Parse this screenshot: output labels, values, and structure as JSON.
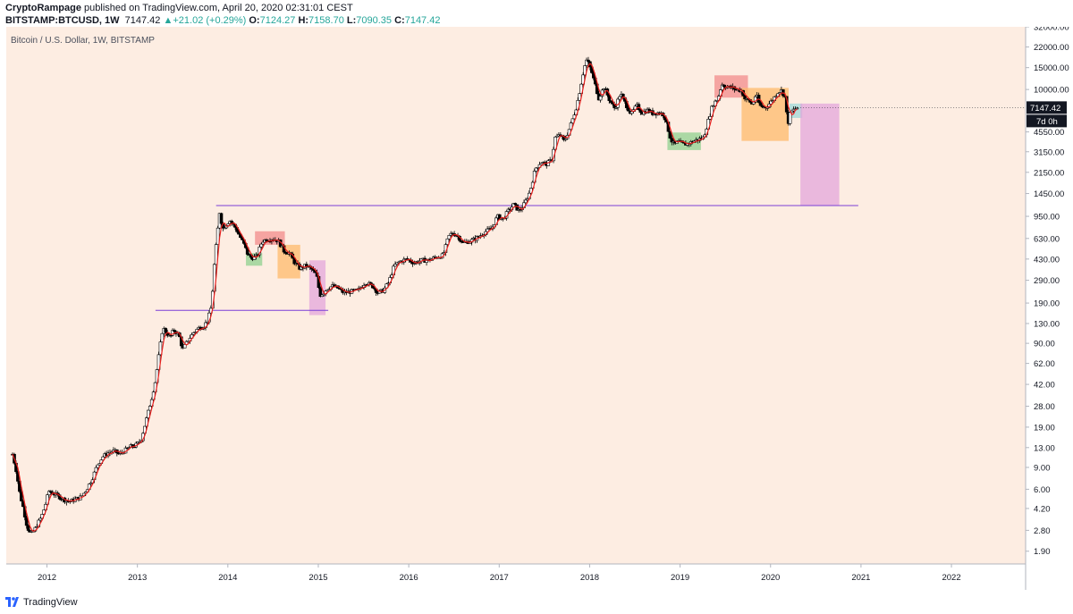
{
  "header": {
    "publisher": "CryptoRampage",
    "published_text": "published on TradingView.com, April 20, 2020 02:31:01 CEST",
    "symbol": "BITSTAMP:BTCUSD, 1W",
    "last": "7147.42",
    "change_arrow": "▲",
    "change": "+21.02 (+0.29%)",
    "o_label": "O:",
    "o_value": "7124.27",
    "h_label": "H:",
    "h_value": "7158.70",
    "l_label": "L:",
    "l_value": "7090.35",
    "c_label": "C:",
    "c_value": "7147.42"
  },
  "footer": {
    "brand": "TradingView",
    "logo_icon": "tradingview-logo-icon"
  },
  "colors": {
    "background": "#fdede2",
    "axis_bg": "#ffffff",
    "candle_up": "#ffffff",
    "candle_down": "#000000",
    "wick": "#000000",
    "ma_line": "#e8201e",
    "level_line": "#7b3fd6",
    "box_red": "#f28b8b",
    "box_orange": "#fdb96b",
    "box_green": "#8fd08f",
    "box_teal": "#9fd8d8",
    "box_pink": "#e3a6db",
    "price_label_bg": "#131722"
  },
  "chart_data": {
    "type": "candlestick",
    "title": "Bitcoin / U.S. Dollar, 1W, BITSTAMP",
    "y_scale": "log",
    "ylim": [
      1.5,
      32000
    ],
    "xlim": [
      2011.55,
      2022.82
    ],
    "y_ticks": [
      "32000.00",
      "22000.00",
      "15000.00",
      "10000.00",
      "7147.42",
      "4550.00",
      "3150.00",
      "2150.00",
      "1450.00",
      "950.00",
      "630.00",
      "430.00",
      "290.00",
      "190.00",
      "130.00",
      "90.00",
      "62.00",
      "42.00",
      "28.00",
      "19.00",
      "13.00",
      "9.00",
      "6.00",
      "4.20",
      "2.80",
      "1.90"
    ],
    "y_tick_values": [
      32000,
      22000,
      15000,
      10000,
      7147.42,
      4550,
      3150,
      2150,
      1450,
      950,
      630,
      430,
      290,
      190,
      130,
      90,
      62,
      42,
      28,
      19,
      13,
      9,
      6,
      4.2,
      2.8,
      1.9
    ],
    "x_ticks": [
      "2012",
      "2013",
      "2014",
      "2015",
      "2016",
      "2017",
      "2018",
      "2019",
      "2020",
      "2021",
      "2022"
    ],
    "x_tick_values": [
      2012,
      2013,
      2014,
      2015,
      2016,
      2017,
      2018,
      2019,
      2020,
      2021,
      2022
    ],
    "last_price_label": "7147.42",
    "countdown_label": "7d 0h",
    "price_path": [
      [
        2011.62,
        11.5
      ],
      [
        2011.66,
        8.5
      ],
      [
        2011.7,
        5.5
      ],
      [
        2011.74,
        4.2
      ],
      [
        2011.78,
        3.0
      ],
      [
        2011.82,
        2.6
      ],
      [
        2011.86,
        2.8
      ],
      [
        2011.9,
        3.2
      ],
      [
        2011.94,
        3.6
      ],
      [
        2011.98,
        4.4
      ],
      [
        2012.02,
        5.8
      ],
      [
        2012.08,
        5.5
      ],
      [
        2012.14,
        5.2
      ],
      [
        2012.2,
        4.9
      ],
      [
        2012.26,
        4.8
      ],
      [
        2012.32,
        5.0
      ],
      [
        2012.38,
        5.2
      ],
      [
        2012.44,
        6.0
      ],
      [
        2012.5,
        7.3
      ],
      [
        2012.56,
        9.5
      ],
      [
        2012.62,
        11.0
      ],
      [
        2012.68,
        11.8
      ],
      [
        2012.74,
        12.2
      ],
      [
        2012.8,
        11.5
      ],
      [
        2012.86,
        12.3
      ],
      [
        2012.92,
        13.2
      ],
      [
        2012.98,
        13.5
      ],
      [
        2013.04,
        15.0
      ],
      [
        2013.1,
        22.0
      ],
      [
        2013.16,
        33.0
      ],
      [
        2013.2,
        45.0
      ],
      [
        2013.24,
        75.0
      ],
      [
        2013.28,
        120.0
      ],
      [
        2013.32,
        110.0
      ],
      [
        2013.36,
        100.0
      ],
      [
        2013.4,
        115.0
      ],
      [
        2013.46,
        105.0
      ],
      [
        2013.5,
        80.0
      ],
      [
        2013.56,
        95.0
      ],
      [
        2013.62,
        110.0
      ],
      [
        2013.68,
        120.0
      ],
      [
        2013.74,
        125.0
      ],
      [
        2013.78,
        140.0
      ],
      [
        2013.82,
        180.0
      ],
      [
        2013.85,
        380.0
      ],
      [
        2013.88,
        650.0
      ],
      [
        2013.91,
        1050.0
      ],
      [
        2013.94,
        750.0
      ],
      [
        2013.97,
        800.0
      ],
      [
        2014.02,
        880.0
      ],
      [
        2014.08,
        780.0
      ],
      [
        2014.14,
        640.0
      ],
      [
        2014.18,
        560.0
      ],
      [
        2014.22,
        470.0
      ],
      [
        2014.26,
        440.0
      ],
      [
        2014.32,
        450.0
      ],
      [
        2014.38,
        600.0
      ],
      [
        2014.44,
        620.0
      ],
      [
        2014.5,
        630.0
      ],
      [
        2014.56,
        600.0
      ],
      [
        2014.62,
        500.0
      ],
      [
        2014.68,
        480.0
      ],
      [
        2014.74,
        400.0
      ],
      [
        2014.8,
        360.0
      ],
      [
        2014.86,
        380.0
      ],
      [
        2014.92,
        360.0
      ],
      [
        2014.98,
        320.0
      ],
      [
        2015.02,
        220.0
      ],
      [
        2015.06,
        230.0
      ],
      [
        2015.1,
        250.0
      ],
      [
        2015.16,
        260.0
      ],
      [
        2015.22,
        250.0
      ],
      [
        2015.28,
        230.0
      ],
      [
        2015.36,
        235.0
      ],
      [
        2015.44,
        240.0
      ],
      [
        2015.52,
        280.0
      ],
      [
        2015.6,
        260.0
      ],
      [
        2015.66,
        230.0
      ],
      [
        2015.72,
        240.0
      ],
      [
        2015.78,
        280.0
      ],
      [
        2015.84,
        380.0
      ],
      [
        2015.9,
        410.0
      ],
      [
        2015.98,
        430.0
      ],
      [
        2016.06,
        400.0
      ],
      [
        2016.14,
        420.0
      ],
      [
        2016.22,
        420.0
      ],
      [
        2016.3,
        445.0
      ],
      [
        2016.38,
        460.0
      ],
      [
        2016.44,
        650.0
      ],
      [
        2016.48,
        700.0
      ],
      [
        2016.54,
        660.0
      ],
      [
        2016.6,
        580.0
      ],
      [
        2016.68,
        600.0
      ],
      [
        2016.76,
        640.0
      ],
      [
        2016.84,
        710.0
      ],
      [
        2016.92,
        760.0
      ],
      [
        2016.98,
        950.0
      ],
      [
        2017.04,
        900.0
      ],
      [
        2017.1,
        1050.0
      ],
      [
        2017.16,
        1180.0
      ],
      [
        2017.22,
        1050.0
      ],
      [
        2017.28,
        1200.0
      ],
      [
        2017.34,
        1500.0
      ],
      [
        2017.4,
        2300.0
      ],
      [
        2017.46,
        2600.0
      ],
      [
        2017.52,
        2500.0
      ],
      [
        2017.58,
        2700.0
      ],
      [
        2017.62,
        4100.0
      ],
      [
        2017.68,
        4300.0
      ],
      [
        2017.72,
        3800.0
      ],
      [
        2017.78,
        4900.0
      ],
      [
        2017.82,
        6000.0
      ],
      [
        2017.86,
        7500.0
      ],
      [
        2017.9,
        10500.0
      ],
      [
        2017.94,
        15000.0
      ],
      [
        2017.97,
        17500.0
      ],
      [
        2018.02,
        14000.0
      ],
      [
        2018.06,
        11000.0
      ],
      [
        2018.1,
        8500.0
      ],
      [
        2018.16,
        10500.0
      ],
      [
        2018.22,
        8200.0
      ],
      [
        2018.28,
        7000.0
      ],
      [
        2018.34,
        9300.0
      ],
      [
        2018.4,
        7600.0
      ],
      [
        2018.46,
        6300.0
      ],
      [
        2018.52,
        7400.0
      ],
      [
        2018.58,
        6500.0
      ],
      [
        2018.64,
        6800.0
      ],
      [
        2018.7,
        6400.0
      ],
      [
        2018.76,
        6500.0
      ],
      [
        2018.82,
        6300.0
      ],
      [
        2018.86,
        5000.0
      ],
      [
        2018.9,
        3900.0
      ],
      [
        2018.94,
        3600.0
      ],
      [
        2018.98,
        3800.0
      ],
      [
        2019.04,
        3600.0
      ],
      [
        2019.1,
        3700.0
      ],
      [
        2019.18,
        3900.0
      ],
      [
        2019.26,
        4100.0
      ],
      [
        2019.3,
        5200.0
      ],
      [
        2019.36,
        7500.0
      ],
      [
        2019.42,
        8500.0
      ],
      [
        2019.46,
        11000.0
      ],
      [
        2019.52,
        10500.0
      ],
      [
        2019.58,
        10300.0
      ],
      [
        2019.62,
        10000.0
      ],
      [
        2019.68,
        9800.0
      ],
      [
        2019.72,
        8300.0
      ],
      [
        2019.76,
        8200.0
      ],
      [
        2019.8,
        7500.0
      ],
      [
        2019.84,
        9200.0
      ],
      [
        2019.88,
        7400.0
      ],
      [
        2019.92,
        7200.0
      ],
      [
        2019.96,
        7300.0
      ],
      [
        2020.02,
        8200.0
      ],
      [
        2020.08,
        9500.0
      ],
      [
        2020.12,
        9800.0
      ],
      [
        2020.16,
        8700.0
      ],
      [
        2020.19,
        5200.0
      ],
      [
        2020.22,
        6500.0
      ],
      [
        2020.26,
        6900.0
      ],
      [
        2020.3,
        7147.42
      ]
    ],
    "annotations": [
      {
        "type": "hline",
        "y": 1160,
        "x1": 2013.87,
        "x2": 2020.97
      },
      {
        "type": "hline",
        "y": 166,
        "x1": 2013.2,
        "x2": 2015.11
      },
      {
        "type": "box",
        "color": "red",
        "x1": 2014.3,
        "x2": 2014.63,
        "y1": 560,
        "y2": 720
      },
      {
        "type": "box",
        "color": "green",
        "x1": 2014.2,
        "x2": 2014.38,
        "y1": 380,
        "y2": 480
      },
      {
        "type": "box",
        "color": "orange",
        "x1": 2014.55,
        "x2": 2014.8,
        "y1": 300,
        "y2": 560
      },
      {
        "type": "box",
        "color": "pink",
        "x1": 2014.9,
        "x2": 2015.08,
        "y1": 152,
        "y2": 420
      },
      {
        "type": "box",
        "color": "red",
        "x1": 2019.38,
        "x2": 2019.75,
        "y1": 8600,
        "y2": 13000
      },
      {
        "type": "box",
        "color": "orange",
        "x1": 2019.68,
        "x2": 2020.2,
        "y1": 3850,
        "y2": 10300
      },
      {
        "type": "box",
        "color": "green",
        "x1": 2018.86,
        "x2": 2019.23,
        "y1": 3250,
        "y2": 4500
      },
      {
        "type": "box",
        "color": "teal",
        "x1": 2020.21,
        "x2": 2020.35,
        "y1": 5900,
        "y2": 7700
      },
      {
        "type": "box",
        "color": "pink",
        "x1": 2020.33,
        "x2": 2020.76,
        "y1": 1160,
        "y2": 7700
      }
    ]
  }
}
